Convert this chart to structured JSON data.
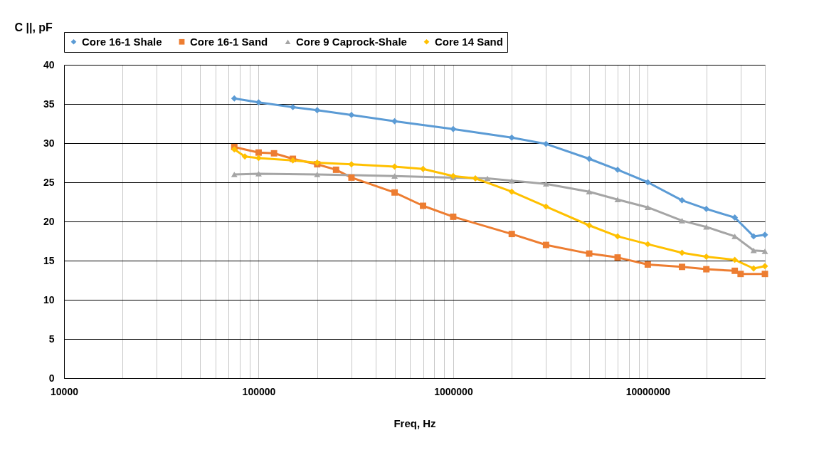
{
  "chart_data": {
    "type": "line",
    "xlabel": "Freq, Hz",
    "ylabel": "C ||, pF",
    "log": "x",
    "grid": true,
    "legend": "top",
    "line_style": "solid",
    "xlim": [
      10000,
      40000000
    ],
    "ylim": [
      0,
      40
    ],
    "xticks": [
      10000,
      {
        "value": 20000,
        "label": null
      },
      {
        "value": 30000,
        "label": null
      },
      {
        "value": 40000,
        "label": null
      },
      {
        "value": 50000,
        "label": null
      },
      {
        "value": 60000,
        "label": null
      },
      {
        "value": 70000,
        "label": null
      },
      {
        "value": 80000,
        "label": null
      },
      {
        "value": 90000,
        "label": null
      },
      100000,
      {
        "value": 200000,
        "label": null
      },
      {
        "value": 300000,
        "label": null
      },
      {
        "value": 400000,
        "label": null
      },
      {
        "value": 500000,
        "label": null
      },
      {
        "value": 600000,
        "label": null
      },
      {
        "value": 700000,
        "label": null
      },
      {
        "value": 800000,
        "label": null
      },
      {
        "value": 900000,
        "label": null
      },
      1000000,
      {
        "value": 2000000,
        "label": null
      },
      {
        "value": 3000000,
        "label": null
      },
      {
        "value": 4000000,
        "label": null
      },
      {
        "value": 5000000,
        "label": null
      },
      {
        "value": 6000000,
        "label": null
      },
      {
        "value": 7000000,
        "label": null
      },
      {
        "value": 8000000,
        "label": null
      },
      {
        "value": 9000000,
        "label": null
      },
      10000000,
      {
        "value": 20000000,
        "label": null
      },
      {
        "value": 30000000,
        "label": null
      },
      {
        "value": 40000000,
        "label": null
      }
    ],
    "yticks": [
      0,
      5,
      10,
      15,
      20,
      25,
      30,
      35,
      40
    ],
    "series": [
      {
        "name": "Core 16-1 Shale",
        "color": "#5b9bd5",
        "marker": "diamond",
        "x": [
          75000,
          100000,
          150000,
          200000,
          300000,
          500000,
          1000000,
          2000000,
          3000000,
          5000000,
          7000000,
          10000000,
          15000000,
          20000000,
          28000000,
          35000000,
          40000000
        ],
        "values": [
          35.7,
          35.2,
          34.6,
          34.2,
          33.6,
          32.8,
          31.8,
          30.7,
          29.9,
          28.0,
          26.6,
          25.0,
          22.7,
          21.6,
          20.5,
          18.1,
          18.3
        ]
      },
      {
        "name": "Core 16-1 Sand",
        "color": "#ed7d31",
        "marker": "square",
        "x": [
          75000,
          100000,
          120000,
          150000,
          200000,
          250000,
          300000,
          500000,
          700000,
          1000000,
          2000000,
          3000000,
          5000000,
          7000000,
          10000000,
          15000000,
          20000000,
          28000000,
          30000000,
          40000000
        ],
        "values": [
          29.5,
          28.8,
          28.7,
          28.0,
          27.3,
          26.6,
          25.6,
          23.7,
          22.0,
          20.6,
          18.4,
          17.0,
          15.9,
          15.4,
          14.5,
          14.2,
          13.9,
          13.7,
          13.3,
          13.3
        ]
      },
      {
        "name": "Core 9 Caprock-Shale",
        "color": "#a5a5a5",
        "marker": "triangle",
        "x": [
          75000,
          100000,
          200000,
          500000,
          1000000,
          1500000,
          2000000,
          3000000,
          5000000,
          7000000,
          10000000,
          15000000,
          20000000,
          28000000,
          35000000,
          40000000
        ],
        "values": [
          26.0,
          26.1,
          26.0,
          25.8,
          25.6,
          25.5,
          25.2,
          24.8,
          23.8,
          22.8,
          21.8,
          20.1,
          19.3,
          18.1,
          16.3,
          16.2
        ]
      },
      {
        "name": "Core 14 Sand",
        "color": "#ffc000",
        "marker": "diamond",
        "x": [
          75000,
          85000,
          100000,
          150000,
          200000,
          300000,
          500000,
          700000,
          1000000,
          1300000,
          2000000,
          3000000,
          5000000,
          7000000,
          10000000,
          15000000,
          20000000,
          28000000,
          35000000,
          40000000
        ],
        "values": [
          29.2,
          28.3,
          28.1,
          27.8,
          27.5,
          27.3,
          27.0,
          26.7,
          25.8,
          25.5,
          23.8,
          21.9,
          19.5,
          18.1,
          17.1,
          16.0,
          15.5,
          15.1,
          14.0,
          14.3
        ]
      }
    ]
  }
}
